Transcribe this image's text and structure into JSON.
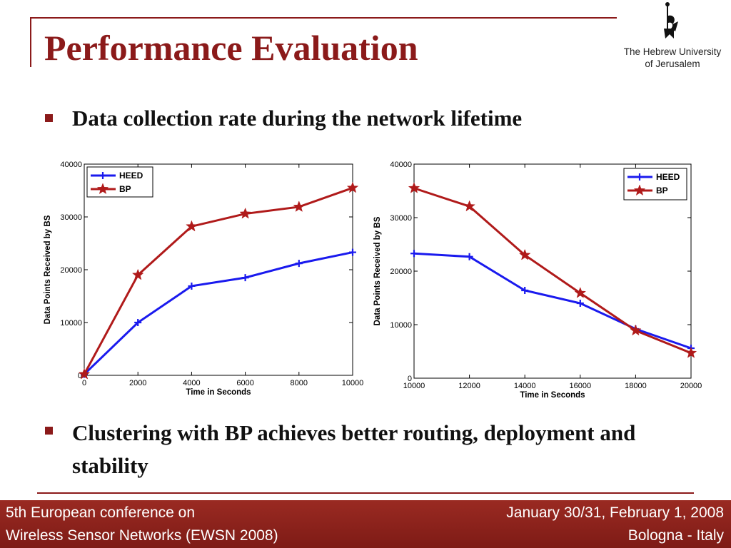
{
  "slide": {
    "title": "Performance Evaluation",
    "logo_line1": "The Hebrew University",
    "logo_line2": "of Jerusalem",
    "bullet1": "Data collection rate during the network lifetime",
    "bullet2": "Clustering with BP achieves better routing, deployment and stability"
  },
  "footer": {
    "left_line1": "5th European conference on",
    "left_line2": "Wireless Sensor Networks (EWSN 2008)",
    "right_line1": "January 30/31, February 1, 2008",
    "right_line2": "Bologna - Italy"
  },
  "colors": {
    "accent": "#8b1a1a",
    "heed": "#1a1aee",
    "bp": "#b01a1a"
  },
  "chart_data": [
    {
      "type": "line",
      "title": "",
      "xlabel": "Time in Seconds",
      "ylabel": "Data Points Received by BS",
      "xlim": [
        0,
        10000
      ],
      "ylim": [
        0,
        40000
      ],
      "xticks": [
        "0",
        "2000",
        "4000",
        "6000",
        "8000",
        "10000"
      ],
      "yticks": [
        "0",
        "10000",
        "20000",
        "30000",
        "40000"
      ],
      "legend": "top-left",
      "x": [
        0,
        2000,
        4000,
        6000,
        8000,
        10000
      ],
      "series": [
        {
          "name": "HEED",
          "marker": "plus",
          "values": [
            200,
            10000,
            16900,
            18500,
            21200,
            23300
          ]
        },
        {
          "name": "BP",
          "marker": "star",
          "values": [
            200,
            19000,
            28200,
            30600,
            31900,
            35500
          ]
        }
      ]
    },
    {
      "type": "line",
      "title": "",
      "xlabel": "Time in Seconds",
      "ylabel": "Data Points Received by BS",
      "xlim": [
        10000,
        20000
      ],
      "ylim": [
        0,
        40000
      ],
      "xticks": [
        "10000",
        "12000",
        "14000",
        "16000",
        "18000",
        "20000"
      ],
      "yticks": [
        "0",
        "10000",
        "20000",
        "30000",
        "40000"
      ],
      "legend": "top-right",
      "x": [
        10000,
        12000,
        14000,
        16000,
        18000,
        20000
      ],
      "series": [
        {
          "name": "HEED",
          "marker": "plus",
          "values": [
            23300,
            22700,
            16400,
            14000,
            9200,
            5600
          ]
        },
        {
          "name": "BP",
          "marker": "star",
          "values": [
            35500,
            32100,
            23000,
            15900,
            8900,
            4700
          ]
        }
      ]
    }
  ]
}
